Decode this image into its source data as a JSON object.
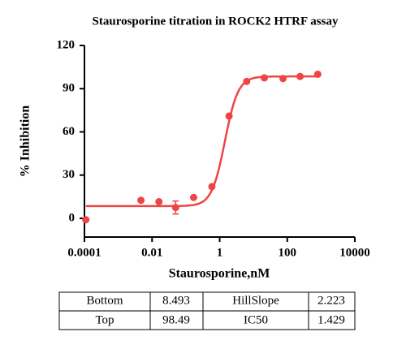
{
  "chart_data": {
    "type": "scatter",
    "title": "Staurosporine titration in ROCK2 HTRF assay",
    "xlabel": "Staurosporine,nM",
    "ylabel": "% Inhibition",
    "color": "#ef4444",
    "xscale": "log",
    "x": [
      0.00011,
      0.0047,
      0.016,
      0.05,
      0.17,
      0.59,
      1.9,
      6.3,
      21,
      75,
      240,
      800
    ],
    "values": [
      -1,
      12.5,
      11.5,
      7.5,
      14.5,
      22,
      71,
      95,
      97.5,
      97,
      98.5,
      100
    ],
    "errors": [
      null,
      null,
      null,
      4.5,
      null,
      null,
      null,
      null,
      null,
      null,
      null,
      null
    ],
    "xlim": [
      0.0001,
      10000
    ],
    "xticks": [
      0.0001,
      0.01,
      1,
      100,
      10000
    ],
    "ylim": [
      -13,
      120
    ],
    "yticks": [
      0,
      30,
      60,
      90,
      120
    ],
    "fit": {
      "labels": [
        "Bottom",
        "Top",
        "HillSlope",
        "IC50"
      ],
      "values": [
        8.493,
        98.49,
        2.223,
        1.429
      ]
    }
  }
}
